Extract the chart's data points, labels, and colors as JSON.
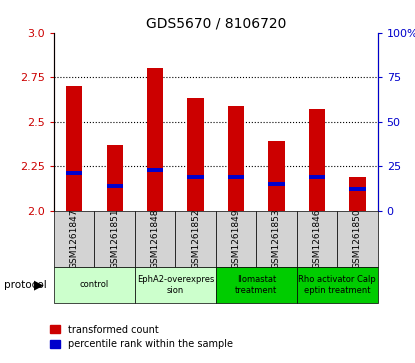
{
  "title": "GDS5670 / 8106720",
  "samples": [
    "GSM1261847",
    "GSM1261851",
    "GSM1261848",
    "GSM1261852",
    "GSM1261849",
    "GSM1261853",
    "GSM1261846",
    "GSM1261850"
  ],
  "red_values": [
    2.7,
    2.37,
    2.8,
    2.63,
    2.59,
    2.39,
    2.57,
    2.19
  ],
  "blue_values": [
    2.21,
    2.14,
    2.23,
    2.19,
    2.19,
    2.15,
    2.19,
    2.12
  ],
  "ylim_left": [
    2.0,
    3.0
  ],
  "ylim_right": [
    0,
    100
  ],
  "yticks_left": [
    2.0,
    2.25,
    2.5,
    2.75,
    3.0
  ],
  "yticks_right": [
    0,
    25,
    50,
    75,
    100
  ],
  "protocols": [
    {
      "label": "control",
      "samples": [
        0,
        1
      ],
      "color": "#ccffcc"
    },
    {
      "label": "EphA2-overexpres\nsion",
      "samples": [
        2,
        3
      ],
      "color": "#ccffcc"
    },
    {
      "label": "Ilomastat\ntreatment",
      "samples": [
        4,
        5
      ],
      "color": "#00cc00"
    },
    {
      "label": "Rho activator Calp\neptin treatment",
      "samples": [
        6,
        7
      ],
      "color": "#00cc00"
    }
  ],
  "bar_color_red": "#cc0000",
  "bar_color_blue": "#0000cc",
  "tick_color_left": "#cc0000",
  "tick_color_right": "#0000cc",
  "bar_width": 0.4,
  "sample_bg": "#d3d3d3",
  "blue_bar_height": 0.022
}
